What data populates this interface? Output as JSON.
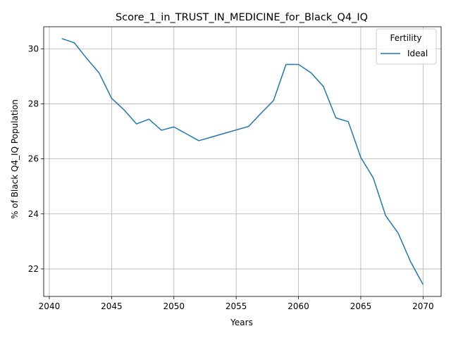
{
  "chart_data": {
    "type": "line",
    "title": "Score_1_in_TRUST_IN_MEDICINE_for_Black_Q4_IQ",
    "xlabel": "Years",
    "ylabel": "% of Black Q4_IQ Population",
    "xlim": [
      2039.55,
      2071.45
    ],
    "ylim": [
      21.0,
      30.8
    ],
    "xticks": [
      2040,
      2045,
      2050,
      2055,
      2060,
      2065,
      2070
    ],
    "yticks": [
      22,
      24,
      26,
      28,
      30
    ],
    "grid": true,
    "legend": {
      "title": "Fertility",
      "placement": "top-right"
    },
    "series": [
      {
        "name": "Ideal",
        "color": "#1f77b4",
        "x": [
          2041,
          2042,
          2043,
          2044,
          2045,
          2046,
          2047,
          2048,
          2049,
          2050,
          2051,
          2052,
          2053,
          2054,
          2055,
          2056,
          2057,
          2058,
          2059,
          2060,
          2061,
          2062,
          2063,
          2064,
          2065,
          2066,
          2067,
          2068,
          2069,
          2070
        ],
        "values": [
          30.37,
          30.22,
          29.65,
          29.12,
          28.2,
          27.78,
          27.27,
          27.44,
          27.04,
          27.16,
          26.91,
          26.66,
          26.79,
          26.92,
          27.05,
          27.18,
          27.66,
          28.12,
          29.43,
          29.43,
          29.13,
          28.63,
          27.49,
          27.35,
          26.05,
          25.31,
          23.93,
          23.3,
          22.26,
          21.43
        ]
      }
    ]
  }
}
